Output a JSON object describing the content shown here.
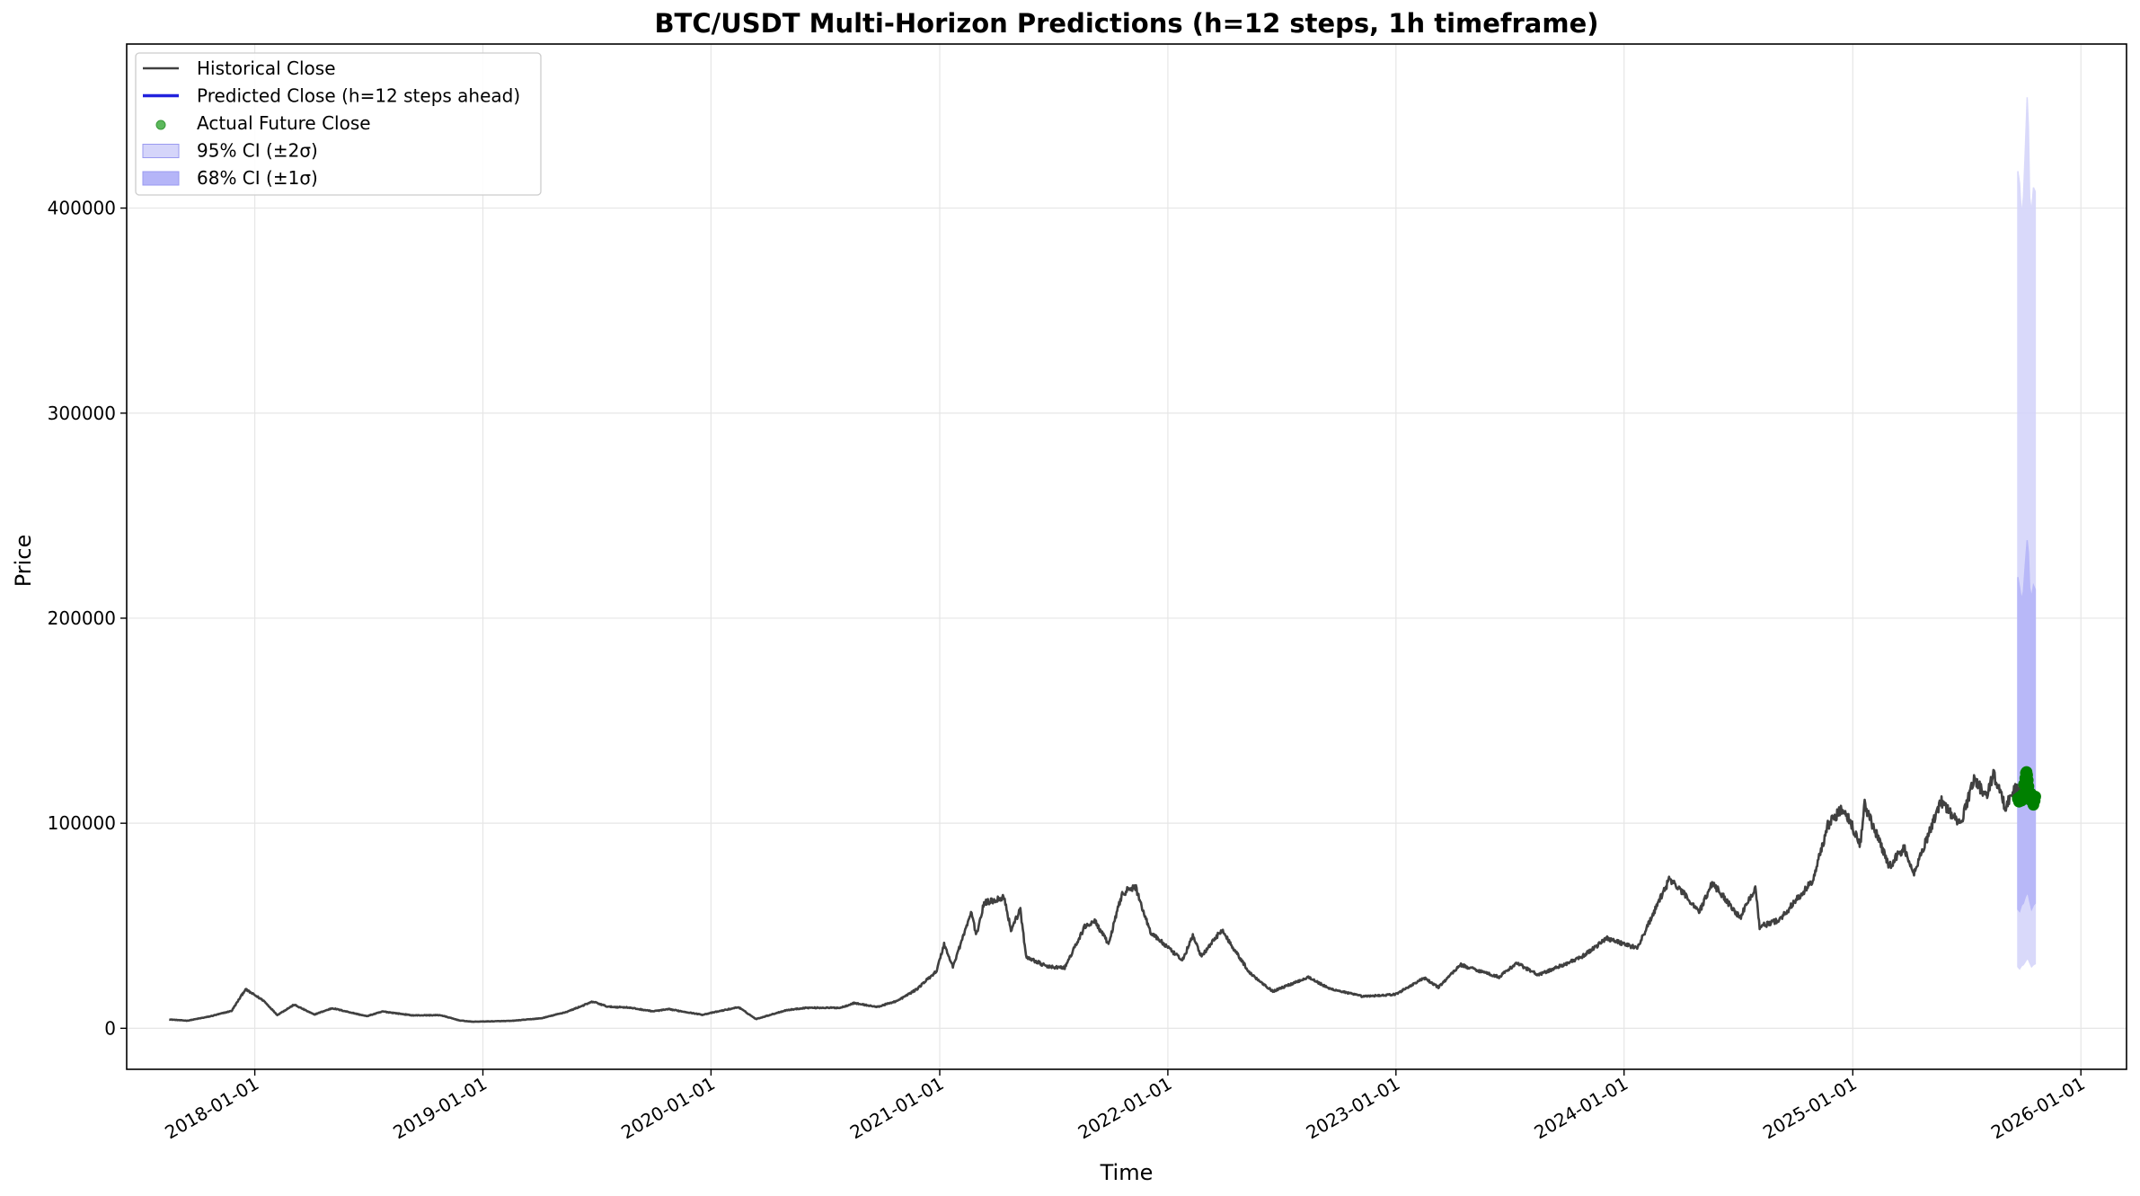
{
  "chart_data": {
    "type": "line",
    "title": "BTC/USDT Multi-Horizon Predictions (h=12 steps, 1h timeframe)",
    "xlabel": "Time",
    "ylabel": "Price",
    "xlim": [
      "2017-06-10",
      "2026-03-15"
    ],
    "ylim": [
      -20000,
      480000
    ],
    "xticks": [
      "2018-01-01",
      "2019-01-01",
      "2020-01-01",
      "2021-01-01",
      "2022-01-01",
      "2023-01-01",
      "2024-01-01",
      "2025-01-01",
      "2026-01-01"
    ],
    "yticks": [
      0,
      100000,
      200000,
      300000,
      400000
    ],
    "grid": true,
    "legend_position": "upper-left",
    "legend": [
      {
        "label": "Historical Close",
        "kind": "line",
        "color": "#404040"
      },
      {
        "label": "Predicted Close (h=12 steps ahead)",
        "kind": "line",
        "color": "#2222dd"
      },
      {
        "label": "Actual Future Close",
        "kind": "marker",
        "color": "#5cb85c"
      },
      {
        "label": "95% CI (±2σ)",
        "kind": "patch",
        "color": "#d5d5fa"
      },
      {
        "label": "68% CI (±1σ)",
        "kind": "patch",
        "color": "#b5b5f8"
      }
    ],
    "series": [
      {
        "name": "Historical Close",
        "color": "#404040",
        "points": [
          [
            "2017-08-17",
            4300
          ],
          [
            "2017-09-15",
            3700
          ],
          [
            "2017-10-20",
            5700
          ],
          [
            "2017-11-25",
            8500
          ],
          [
            "2017-12-17",
            19000
          ],
          [
            "2018-01-15",
            13500
          ],
          [
            "2018-02-06",
            6500
          ],
          [
            "2018-03-05",
            11500
          ],
          [
            "2018-04-06",
            6700
          ],
          [
            "2018-05-05",
            9800
          ],
          [
            "2018-06-29",
            5900
          ],
          [
            "2018-07-25",
            8200
          ],
          [
            "2018-09-10",
            6300
          ],
          [
            "2018-10-25",
            6400
          ],
          [
            "2018-11-25",
            3800
          ],
          [
            "2018-12-15",
            3200
          ],
          [
            "2019-02-15",
            3600
          ],
          [
            "2019-04-05",
            4900
          ],
          [
            "2019-05-15",
            8000
          ],
          [
            "2019-06-26",
            13000
          ],
          [
            "2019-07-20",
            10500
          ],
          [
            "2019-08-20",
            10200
          ],
          [
            "2019-09-30",
            8300
          ],
          [
            "2019-10-26",
            9300
          ],
          [
            "2019-12-18",
            6600
          ],
          [
            "2020-02-14",
            10300
          ],
          [
            "2020-03-13",
            4500
          ],
          [
            "2020-04-30",
            8800
          ],
          [
            "2020-06-01",
            10000
          ],
          [
            "2020-07-26",
            10000
          ],
          [
            "2020-08-17",
            12300
          ],
          [
            "2020-09-23",
            10400
          ],
          [
            "2020-10-26",
            13500
          ],
          [
            "2020-11-25",
            19000
          ],
          [
            "2020-12-27",
            28000
          ],
          [
            "2021-01-08",
            41000
          ],
          [
            "2021-01-22",
            30000
          ],
          [
            "2021-02-21",
            57000
          ],
          [
            "2021-02-28",
            45000
          ],
          [
            "2021-03-13",
            61000
          ],
          [
            "2021-04-14",
            64000
          ],
          [
            "2021-04-25",
            48000
          ],
          [
            "2021-05-10",
            58000
          ],
          [
            "2021-05-19",
            35000
          ],
          [
            "2021-06-22",
            30000
          ],
          [
            "2021-07-20",
            29500
          ],
          [
            "2021-08-22",
            50000
          ],
          [
            "2021-09-07",
            52000
          ],
          [
            "2021-09-28",
            41000
          ],
          [
            "2021-10-20",
            66000
          ],
          [
            "2021-11-10",
            69000
          ],
          [
            "2021-12-04",
            47000
          ],
          [
            "2022-01-24",
            33000
          ],
          [
            "2022-02-10",
            45000
          ],
          [
            "2022-02-24",
            35000
          ],
          [
            "2022-03-28",
            48000
          ],
          [
            "2022-05-12",
            27000
          ],
          [
            "2022-06-18",
            18000
          ],
          [
            "2022-08-14",
            25000
          ],
          [
            "2022-09-15",
            19500
          ],
          [
            "2022-11-09",
            15500
          ],
          [
            "2022-12-31",
            16500
          ],
          [
            "2023-02-15",
            24500
          ],
          [
            "2023-03-10",
            20000
          ],
          [
            "2023-04-14",
            31000
          ],
          [
            "2023-06-15",
            25000
          ],
          [
            "2023-07-13",
            31800
          ],
          [
            "2023-08-17",
            26000
          ],
          [
            "2023-10-24",
            34500
          ],
          [
            "2023-12-05",
            44000
          ],
          [
            "2024-01-22",
            39000
          ],
          [
            "2024-03-14",
            73000
          ],
          [
            "2024-05-01",
            57000
          ],
          [
            "2024-05-21",
            71000
          ],
          [
            "2024-07-05",
            54000
          ],
          [
            "2024-07-29",
            69000
          ],
          [
            "2024-08-05",
            49500
          ],
          [
            "2024-09-06",
            53000
          ],
          [
            "2024-10-29",
            72000
          ],
          [
            "2024-11-22",
            99000
          ],
          [
            "2024-12-17",
            108000
          ],
          [
            "2025-01-13",
            90000
          ],
          [
            "2025-01-20",
            109000
          ],
          [
            "2025-02-28",
            79000
          ],
          [
            "2025-03-24",
            88000
          ],
          [
            "2025-04-08",
            75000
          ],
          [
            "2025-05-22",
            111000
          ],
          [
            "2025-06-22",
            99000
          ],
          [
            "2025-07-14",
            122000
          ],
          [
            "2025-08-02",
            113000
          ],
          [
            "2025-08-14",
            124000
          ],
          [
            "2025-09-02",
            108000
          ],
          [
            "2025-09-18",
            117000
          ],
          [
            "2025-10-01",
            114000
          ]
        ]
      },
      {
        "name": "Predicted Close (h=12 steps ahead)",
        "color": "#2222dd",
        "points": [
          [
            "2025-09-20",
            115000
          ],
          [
            "2025-10-01",
            113000
          ],
          [
            "2025-10-10",
            118000
          ],
          [
            "2025-10-20",
            112000
          ]
        ]
      },
      {
        "name": "Actual Future Close",
        "color": "#008000",
        "points": [
          [
            "2025-09-22",
            112000
          ],
          [
            "2025-09-24",
            110500
          ],
          [
            "2025-09-26",
            113000
          ],
          [
            "2025-09-28",
            111000
          ],
          [
            "2025-09-30",
            114000
          ],
          [
            "2025-10-02",
            119000
          ],
          [
            "2025-10-04",
            122000
          ],
          [
            "2025-10-05",
            124500
          ],
          [
            "2025-10-06",
            125000
          ],
          [
            "2025-10-07",
            123500
          ],
          [
            "2025-10-08",
            121000
          ],
          [
            "2025-10-09",
            118000
          ],
          [
            "2025-10-10",
            115000
          ],
          [
            "2025-10-11",
            111500
          ],
          [
            "2025-10-12",
            112500
          ],
          [
            "2025-10-13",
            114500
          ],
          [
            "2025-10-14",
            112500
          ],
          [
            "2025-10-15",
            111000
          ],
          [
            "2025-10-16",
            110000
          ],
          [
            "2025-10-17",
            109000
          ],
          [
            "2025-10-18",
            110500
          ],
          [
            "2025-10-19",
            111000
          ],
          [
            "2025-10-20",
            113000
          ]
        ]
      }
    ],
    "confidence_bands": [
      {
        "name": "95% CI (±2σ)",
        "color": "#d5d5fa",
        "points": [
          [
            "2025-09-22",
            30000,
            418000
          ],
          [
            "2025-09-25",
            29000,
            412000
          ],
          [
            "2025-09-28",
            30500,
            396000
          ],
          [
            "2025-10-01",
            31000,
            405000
          ],
          [
            "2025-10-04",
            32500,
            428000
          ],
          [
            "2025-10-07",
            34000,
            454000
          ],
          [
            "2025-10-09",
            33500,
            440000
          ],
          [
            "2025-10-11",
            32000,
            405000
          ],
          [
            "2025-10-14",
            30000,
            398000
          ],
          [
            "2025-10-17",
            31000,
            410000
          ],
          [
            "2025-10-20",
            31500,
            408000
          ]
        ]
      },
      {
        "name": "68% CI (±1σ)",
        "color": "#b5b5f8",
        "points": [
          [
            "2025-09-22",
            58000,
            220000
          ],
          [
            "2025-09-25",
            57000,
            215000
          ],
          [
            "2025-09-28",
            60000,
            209000
          ],
          [
            "2025-10-01",
            61000,
            213000
          ],
          [
            "2025-10-04",
            64000,
            226000
          ],
          [
            "2025-10-07",
            66000,
            238000
          ],
          [
            "2025-10-09",
            65000,
            232000
          ],
          [
            "2025-10-11",
            62000,
            215000
          ],
          [
            "2025-10-14",
            58000,
            210000
          ],
          [
            "2025-10-17",
            60000,
            216000
          ],
          [
            "2025-10-20",
            61000,
            214000
          ]
        ]
      }
    ]
  }
}
